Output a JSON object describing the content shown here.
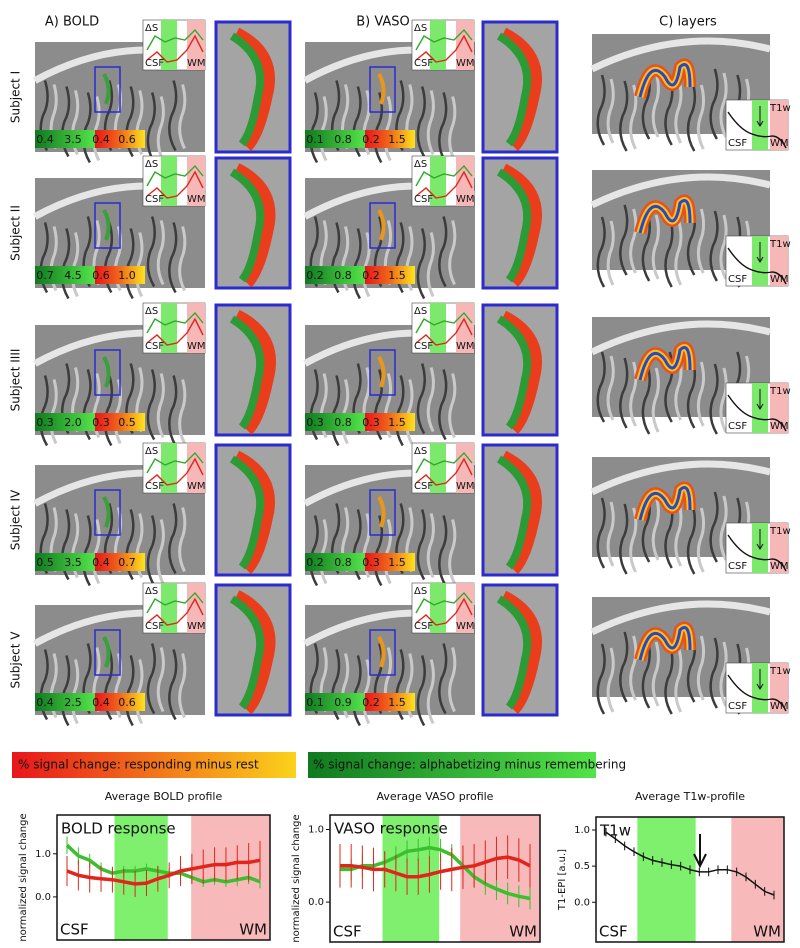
{
  "columns": [
    {
      "header": "A) BOLD"
    },
    {
      "header": "B) VASO"
    },
    {
      "header": "C) layers"
    }
  ],
  "rows": [
    {
      "label": "Subject I",
      "bold_scale": [
        "0.4",
        "3.5",
        "0.4",
        "0.6"
      ],
      "vaso_scale": [
        "0.1",
        "0.8",
        "0.2",
        "1.5"
      ]
    },
    {
      "label": "Subject II",
      "bold_scale": [
        "0.7",
        "4.5",
        "0.6",
        "1.0"
      ],
      "vaso_scale": [
        "0.2",
        "0.8",
        "0.2",
        "1.5"
      ]
    },
    {
      "label": "Subject IIII",
      "bold_scale": [
        "0.3",
        "2.0",
        "0.3",
        "0.5"
      ],
      "vaso_scale": [
        "0.3",
        "0.8",
        "0.3",
        "1.5"
      ]
    },
    {
      "label": "Subject IV",
      "bold_scale": [
        "0.5",
        "3.5",
        "0.4",
        "0.7"
      ],
      "vaso_scale": [
        "0.2",
        "0.8",
        "0.3",
        "1.5"
      ]
    },
    {
      "label": "Subject V",
      "bold_scale": [
        "0.4",
        "2.5",
        "0.4",
        "0.6"
      ],
      "vaso_scale": [
        "0.1",
        "0.9",
        "0.2",
        "1.5"
      ]
    }
  ],
  "profile_labels": {
    "delta": "ΔS",
    "csf": "CSF",
    "wm": "WM",
    "t1w": "T1w"
  },
  "legend": {
    "red": "% signal change: responding minus rest",
    "green": "% signal change: alphabetizing minus remembering"
  },
  "chart_data": [
    {
      "type": "line",
      "title": "Average BOLD profile",
      "ylabel": "normalized signal change",
      "annotation": "BOLD response",
      "x_start_label": "CSF",
      "x_end_label": "WM",
      "ylim": [
        -1.0,
        1.9
      ],
      "yticks": [
        {
          "value": 0,
          "label": "0.0"
        },
        {
          "value": 1,
          "label": "1.0"
        }
      ],
      "series": [
        {
          "color": "#3cbf2f",
          "values": [
            1.2,
            0.95,
            0.85,
            0.65,
            0.55,
            0.6,
            0.6,
            0.65,
            0.6,
            0.55,
            0.55,
            0.45,
            0.35,
            0.4,
            0.35,
            0.4,
            0.45,
            0.35
          ],
          "errors": [
            0.2,
            0.2,
            0.15,
            0.15,
            0.12,
            0.12,
            0.12,
            0.12,
            0.12,
            0.12,
            0.12,
            0.12,
            0.12,
            0.12,
            0.12,
            0.15,
            0.15,
            0.15
          ]
        },
        {
          "color": "#e0261c",
          "values": [
            0.6,
            0.5,
            0.45,
            0.42,
            0.4,
            0.35,
            0.3,
            0.32,
            0.42,
            0.5,
            0.6,
            0.65,
            0.7,
            0.75,
            0.75,
            0.8,
            0.8,
            0.85
          ],
          "errors": [
            0.35,
            0.35,
            0.35,
            0.3,
            0.3,
            0.3,
            0.3,
            0.3,
            0.3,
            0.3,
            0.35,
            0.35,
            0.4,
            0.4,
            0.4,
            0.4,
            0.45,
            0.45
          ]
        }
      ]
    },
    {
      "type": "line",
      "title": "Average VASO profile",
      "ylabel": "normalized signal change",
      "annotation": "VASO response",
      "x_start_label": "CSF",
      "x_end_label": "WM",
      "ylim": [
        -0.55,
        1.2
      ],
      "yticks": [
        {
          "value": 0,
          "label": "0.0"
        },
        {
          "value": 1,
          "label": "1.0"
        }
      ],
      "series": [
        {
          "color": "#3cbf2f",
          "values": [
            0.45,
            0.45,
            0.5,
            0.5,
            0.55,
            0.62,
            0.7,
            0.72,
            0.75,
            0.72,
            0.65,
            0.5,
            0.35,
            0.25,
            0.18,
            0.12,
            0.08,
            0.05
          ],
          "errors": [
            0.15,
            0.15,
            0.15,
            0.15,
            0.15,
            0.15,
            0.15,
            0.15,
            0.15,
            0.15,
            0.15,
            0.15,
            0.15,
            0.15,
            0.15,
            0.15,
            0.15,
            0.15
          ]
        },
        {
          "color": "#e0261c",
          "values": [
            0.5,
            0.5,
            0.48,
            0.45,
            0.45,
            0.4,
            0.35,
            0.35,
            0.38,
            0.42,
            0.45,
            0.48,
            0.5,
            0.55,
            0.6,
            0.62,
            0.58,
            0.5
          ],
          "errors": [
            0.3,
            0.3,
            0.3,
            0.3,
            0.25,
            0.25,
            0.25,
            0.25,
            0.25,
            0.25,
            0.3,
            0.3,
            0.3,
            0.3,
            0.3,
            0.3,
            0.3,
            0.3
          ]
        }
      ]
    },
    {
      "type": "line",
      "title": "Average T1w-profile",
      "ylabel": "T1-EPI [a.u.]",
      "annotation": "T1w",
      "x_start_label": "CSF",
      "x_end_label": "WM",
      "ylim": [
        -0.55,
        1.18
      ],
      "yticks": [
        {
          "value": 0,
          "label": "0.0"
        },
        0.5,
        {
          "value": 1,
          "label": "1.0"
        }
      ],
      "series": [
        {
          "color": "#111111",
          "values": [
            0.97,
            0.88,
            0.78,
            0.7,
            0.63,
            0.58,
            0.55,
            0.52,
            0.5,
            0.45,
            0.42,
            0.42,
            0.45,
            0.45,
            0.42,
            0.35,
            0.25,
            0.15,
            0.1
          ],
          "errors": [
            0.06,
            0.06,
            0.06,
            0.06,
            0.06,
            0.06,
            0.06,
            0.06,
            0.06,
            0.06,
            0.06,
            0.06,
            0.06,
            0.06,
            0.06,
            0.06,
            0.06,
            0.06,
            0.06
          ]
        }
      ]
    }
  ]
}
